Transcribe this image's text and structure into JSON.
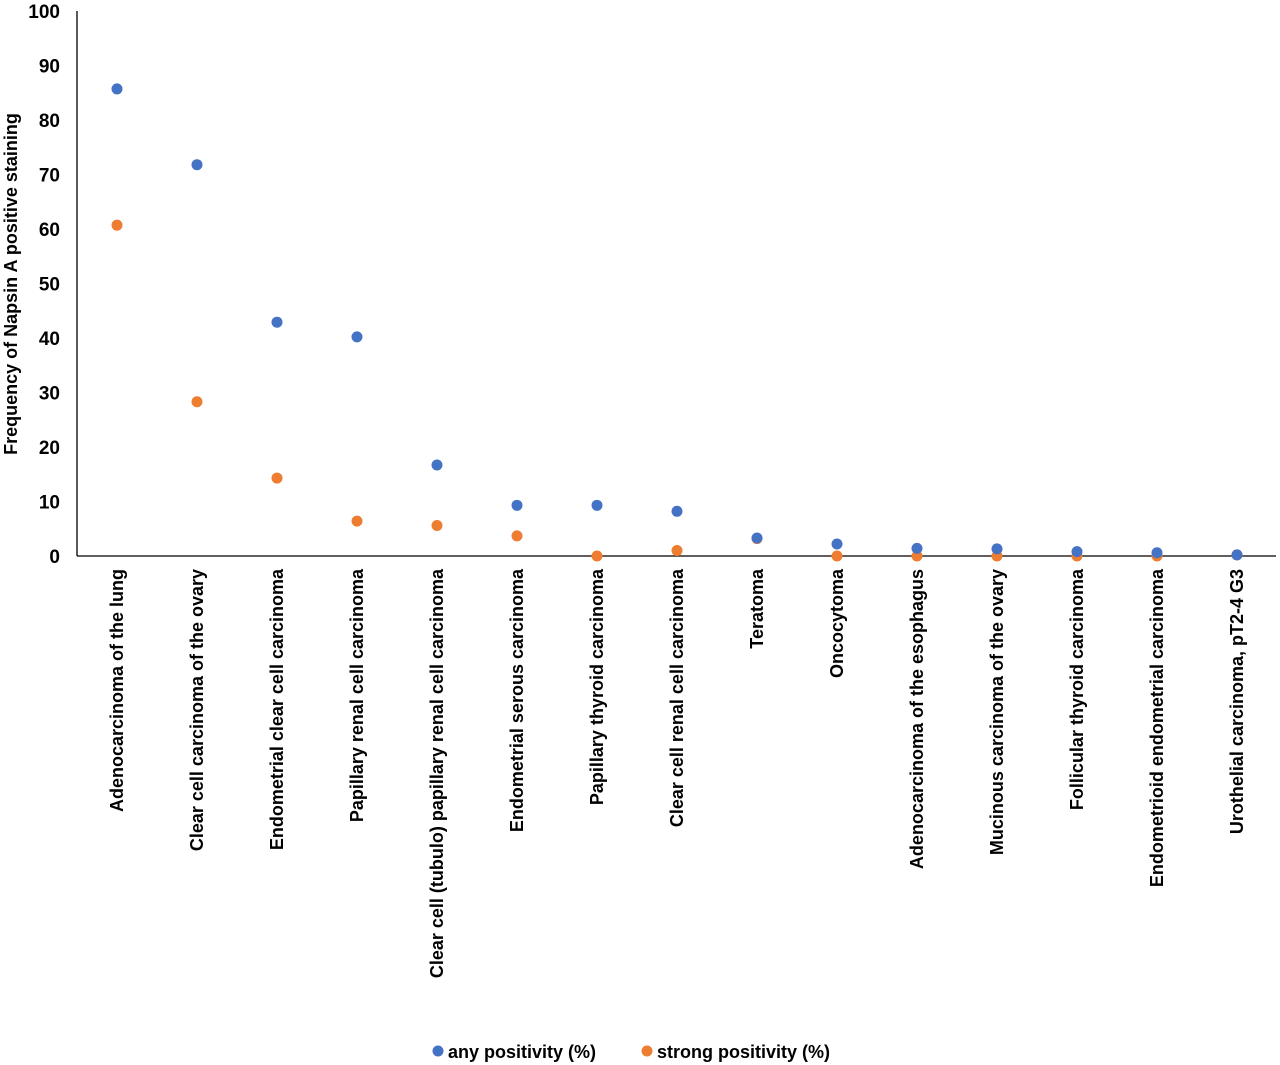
{
  "chart_data": {
    "type": "scatter",
    "title": "",
    "xlabel": "",
    "ylabel": "Frequency of Napsin A positive staining",
    "ylim": [
      0,
      100
    ],
    "yticks": [
      0,
      10,
      20,
      30,
      40,
      50,
      60,
      70,
      80,
      90,
      100
    ],
    "grid": false,
    "legend_position": "bottom",
    "categories": [
      "Adenocarcinoma of the lung",
      "Clear cell carcinoma of the ovary",
      "Endometrial clear cell carcinoma",
      "Papillary renal cell carcinoma",
      "Clear cell (tubulo) papillary renal cell carcinoma",
      "Endometrial serous carcinoma",
      "Papillary thyroid carcinoma",
      "Clear cell renal cell carcinoma",
      "Teratoma",
      "Oncocytoma",
      "Adenocarcinoma of the esophagus",
      "Mucinous carcinoma of the ovary",
      "Follicular thyroid carcinoma",
      "Endometrioid endometrial carcinoma",
      "Urothelial carcinoma, pT2-4 G3"
    ],
    "series": [
      {
        "name": "any positivity (%)",
        "color": "#4472c4",
        "values": [
          85.7,
          71.8,
          42.9,
          40.2,
          16.7,
          9.3,
          9.3,
          8.2,
          3.3,
          2.2,
          1.4,
          1.3,
          0.8,
          0.6,
          0.2
        ]
      },
      {
        "name": "strong positivity (%)",
        "color": "#ed7d31",
        "values": [
          60.7,
          28.3,
          14.3,
          6.4,
          5.6,
          3.7,
          0.0,
          1.0,
          3.2,
          0.0,
          0.0,
          0.0,
          0.0,
          0.0,
          0.2
        ]
      }
    ]
  }
}
